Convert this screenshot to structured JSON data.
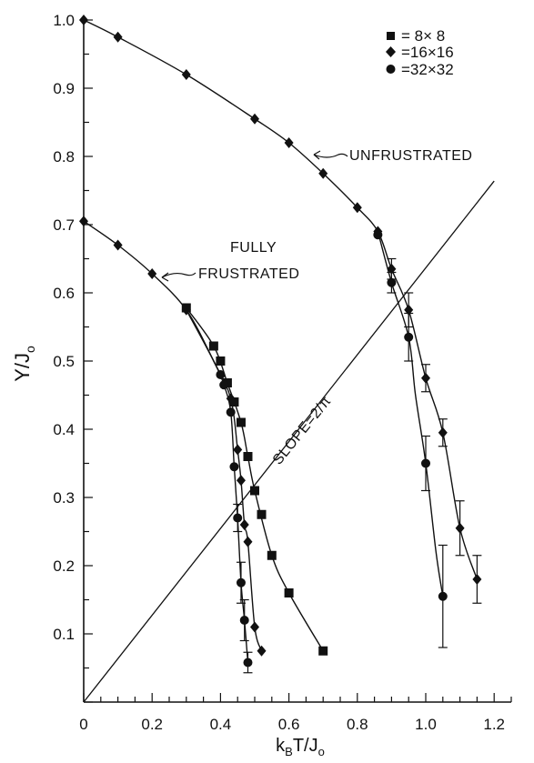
{
  "chart_data": {
    "type": "scatter",
    "xlabel": "k_BT/J_0",
    "ylabel": "Υ/J_0",
    "xlim": [
      0,
      1.25
    ],
    "ylim": [
      0,
      1.0
    ],
    "xticks": [
      0,
      0.2,
      0.4,
      0.6,
      0.8,
      1.0,
      1.2
    ],
    "xtick_labels": [
      "0",
      "0.2",
      "0.4",
      "0.6",
      "0.8",
      "1.0",
      "1.2"
    ],
    "yticks": [
      0.1,
      0.2,
      0.3,
      0.4,
      0.5,
      0.6,
      0.7,
      0.8,
      0.9,
      1.0
    ],
    "ytick_labels": [
      "0.1",
      "0.2",
      "0.3",
      "0.4",
      "0.5",
      "0.6",
      "0.7",
      "0.8",
      "0.9",
      "1.0"
    ],
    "legend": {
      "placement": "top-right",
      "entries": [
        {
          "marker": "square",
          "label": "= 8× 8"
        },
        {
          "marker": "diamond",
          "label": "=16×16"
        },
        {
          "marker": "circle",
          "label": "=32×32"
        }
      ]
    },
    "annotations": {
      "unfrustrated": "UNFRUSTRATED",
      "fully_line1": "FULLY",
      "fully_line2": "FRUSTRATED",
      "slope": "SLOPE=2/π"
    },
    "reference_line": {
      "slope": 0.6366,
      "x": [
        0,
        1.2
      ],
      "label": "SLOPE=2/π"
    },
    "series": [
      {
        "marker": "diamond",
        "points": [
          {
            "x": 0.0,
            "y": 1.0
          },
          {
            "x": 0.1,
            "y": 0.975
          },
          {
            "x": 0.3,
            "y": 0.92
          },
          {
            "x": 0.5,
            "y": 0.855
          },
          {
            "x": 0.6,
            "y": 0.82
          },
          {
            "x": 0.7,
            "y": 0.775
          },
          {
            "x": 0.8,
            "y": 0.725
          },
          {
            "x": 0.86,
            "y": 0.69
          },
          {
            "x": 0.9,
            "y": 0.635,
            "err": 0.015
          },
          {
            "x": 0.95,
            "y": 0.575,
            "err": 0.025
          },
          {
            "x": 1.0,
            "y": 0.475,
            "err": 0.02
          },
          {
            "x": 1.05,
            "y": 0.395,
            "err": 0.02
          },
          {
            "x": 1.1,
            "y": 0.255,
            "err": 0.04
          },
          {
            "x": 1.15,
            "y": 0.18,
            "err": 0.035
          }
        ]
      },
      {
        "marker": "circle",
        "points": [
          {
            "x": 0.86,
            "y": 0.685
          },
          {
            "x": 0.9,
            "y": 0.615,
            "err": 0.015
          },
          {
            "x": 0.95,
            "y": 0.535,
            "err": 0.035
          },
          {
            "x": 1.0,
            "y": 0.35,
            "err": 0.04
          },
          {
            "x": 1.05,
            "y": 0.155,
            "err": 0.075
          }
        ]
      },
      {
        "marker": "diamond",
        "points": [
          {
            "x": 0.0,
            "y": 0.705
          },
          {
            "x": 0.1,
            "y": 0.67
          },
          {
            "x": 0.2,
            "y": 0.628
          },
          {
            "x": 0.3,
            "y": 0.575
          },
          {
            "x": 0.43,
            "y": 0.445
          },
          {
            "x": 0.45,
            "y": 0.37
          },
          {
            "x": 0.46,
            "y": 0.325
          },
          {
            "x": 0.47,
            "y": 0.26
          },
          {
            "x": 0.48,
            "y": 0.235
          },
          {
            "x": 0.5,
            "y": 0.11
          },
          {
            "x": 0.52,
            "y": 0.075
          }
        ]
      },
      {
        "marker": "square",
        "points": [
          {
            "x": 0.3,
            "y": 0.578
          },
          {
            "x": 0.38,
            "y": 0.522
          },
          {
            "x": 0.4,
            "y": 0.5
          },
          {
            "x": 0.42,
            "y": 0.468
          },
          {
            "x": 0.44,
            "y": 0.44
          },
          {
            "x": 0.46,
            "y": 0.41
          },
          {
            "x": 0.48,
            "y": 0.36
          },
          {
            "x": 0.5,
            "y": 0.31
          },
          {
            "x": 0.52,
            "y": 0.275
          },
          {
            "x": 0.55,
            "y": 0.215
          },
          {
            "x": 0.6,
            "y": 0.16
          },
          {
            "x": 0.7,
            "y": 0.075
          }
        ]
      },
      {
        "marker": "circle",
        "points": [
          {
            "x": 0.4,
            "y": 0.48
          },
          {
            "x": 0.41,
            "y": 0.465
          },
          {
            "x": 0.43,
            "y": 0.425
          },
          {
            "x": 0.44,
            "y": 0.345
          },
          {
            "x": 0.45,
            "y": 0.27,
            "err": 0.02
          },
          {
            "x": 0.46,
            "y": 0.175,
            "err": 0.03
          },
          {
            "x": 0.47,
            "y": 0.12,
            "err": 0.03
          },
          {
            "x": 0.48,
            "y": 0.058,
            "err": 0.015
          }
        ]
      }
    ],
    "curves": [
      {
        "name": "unfrustrated-main",
        "points": [
          [
            0,
            1.0
          ],
          [
            0.1,
            0.975
          ],
          [
            0.3,
            0.92
          ],
          [
            0.5,
            0.855
          ],
          [
            0.6,
            0.82
          ],
          [
            0.7,
            0.775
          ],
          [
            0.8,
            0.725
          ],
          [
            0.86,
            0.69
          ],
          [
            0.9,
            0.635
          ],
          [
            0.95,
            0.575
          ],
          [
            1.0,
            0.475
          ],
          [
            1.05,
            0.395
          ],
          [
            1.1,
            0.255
          ],
          [
            1.15,
            0.18
          ]
        ]
      },
      {
        "name": "unfrustrated-32",
        "points": [
          [
            0.86,
            0.69
          ],
          [
            0.9,
            0.615
          ],
          [
            0.95,
            0.535
          ],
          [
            0.97,
            0.45
          ],
          [
            1.0,
            0.35
          ],
          [
            1.03,
            0.22
          ],
          [
            1.05,
            0.155
          ]
        ]
      },
      {
        "name": "fully-16",
        "points": [
          [
            0,
            0.705
          ],
          [
            0.1,
            0.67
          ],
          [
            0.2,
            0.628
          ],
          [
            0.3,
            0.575
          ],
          [
            0.38,
            0.5
          ],
          [
            0.43,
            0.445
          ],
          [
            0.45,
            0.37
          ],
          [
            0.46,
            0.325
          ],
          [
            0.47,
            0.26
          ],
          [
            0.48,
            0.235
          ],
          [
            0.5,
            0.11
          ],
          [
            0.52,
            0.075
          ]
        ]
      },
      {
        "name": "fully-8",
        "points": [
          [
            0.3,
            0.578
          ],
          [
            0.38,
            0.522
          ],
          [
            0.42,
            0.468
          ],
          [
            0.46,
            0.41
          ],
          [
            0.48,
            0.36
          ],
          [
            0.5,
            0.31
          ],
          [
            0.55,
            0.215
          ],
          [
            0.6,
            0.16
          ],
          [
            0.7,
            0.075
          ]
        ]
      },
      {
        "name": "fully-32",
        "points": [
          [
            0.3,
            0.575
          ],
          [
            0.38,
            0.5
          ],
          [
            0.41,
            0.465
          ],
          [
            0.43,
            0.425
          ],
          [
            0.44,
            0.345
          ],
          [
            0.45,
            0.27
          ],
          [
            0.46,
            0.175
          ],
          [
            0.47,
            0.12
          ],
          [
            0.48,
            0.058
          ]
        ]
      }
    ]
  }
}
